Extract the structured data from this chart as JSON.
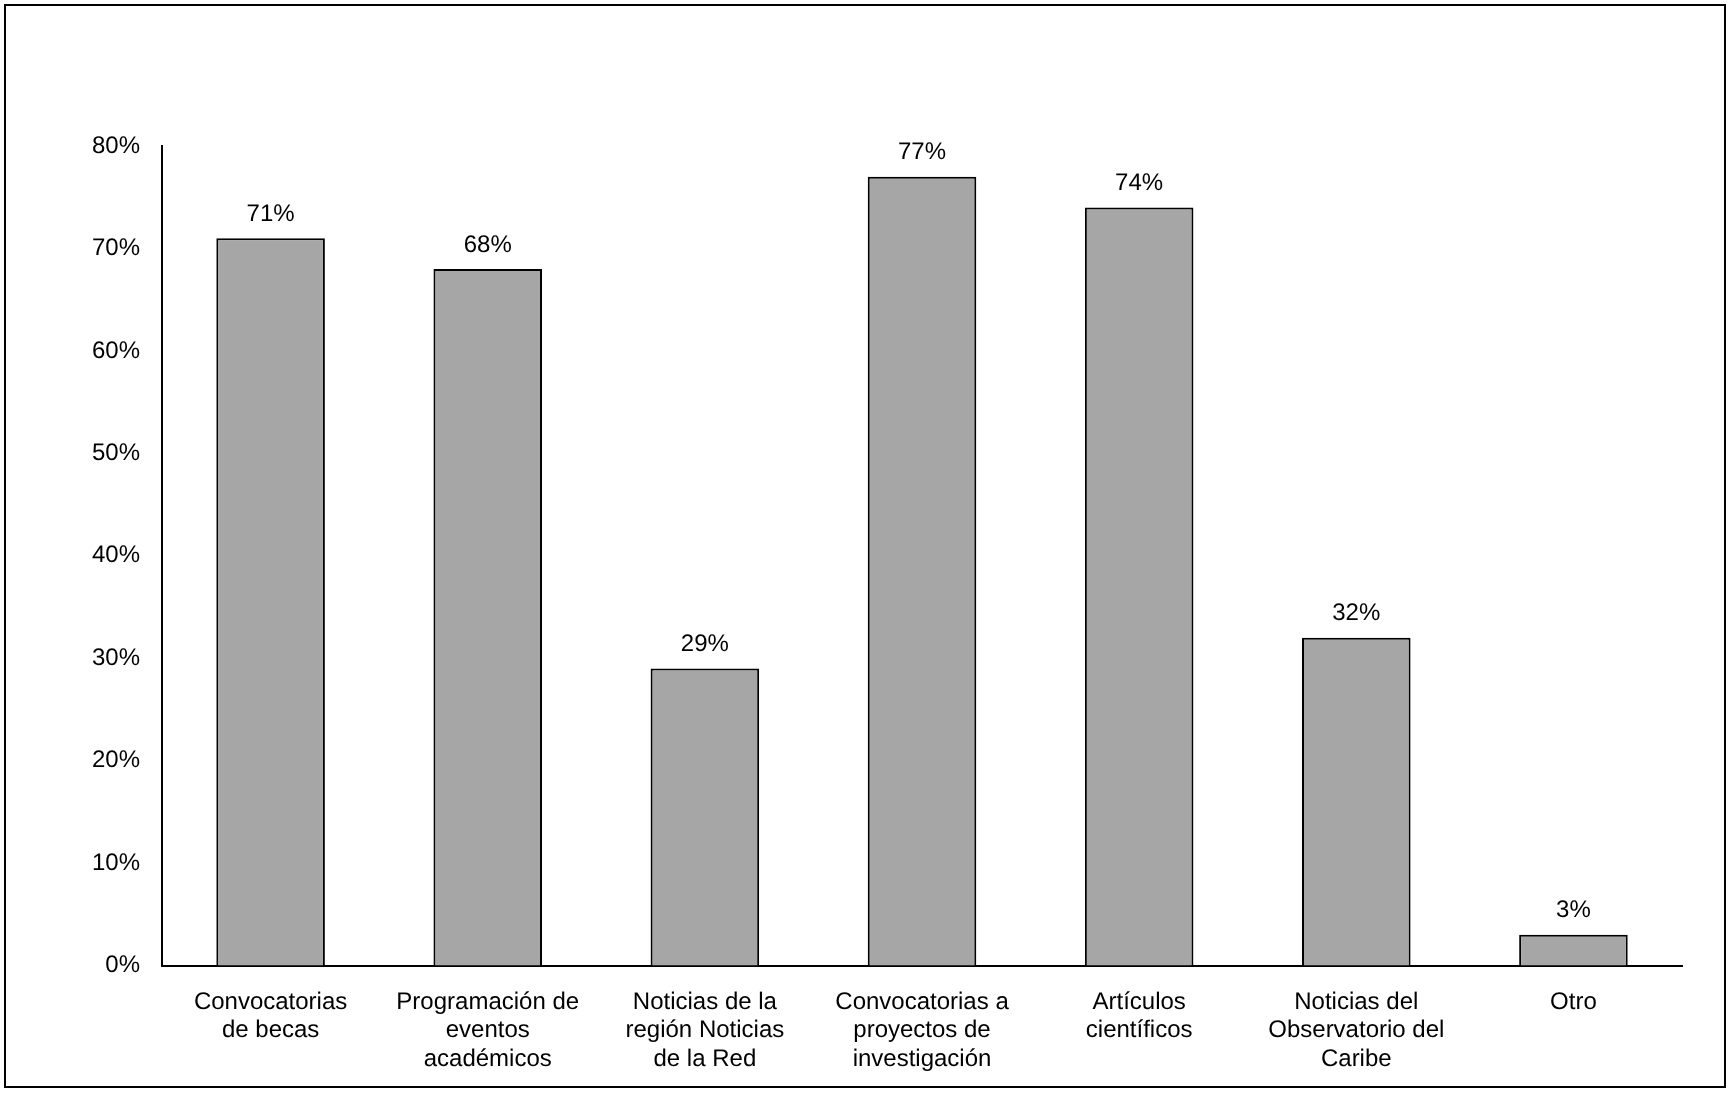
{
  "chart_data": {
    "type": "bar",
    "categories": [
      "Convocatorias de becas",
      "Programación de eventos académicos",
      "Noticias de la región Noticias de la Red",
      "Convocatorias a proyectos de investigación",
      "Artículos científicos",
      "Noticias del Observatorio del Caribe",
      "Otro"
    ],
    "values": [
      71,
      68,
      29,
      77,
      74,
      32,
      3
    ],
    "value_labels": [
      "71%",
      "68%",
      "29%",
      "77%",
      "74%",
      "32%",
      "3%"
    ],
    "color": "#a6a6a6",
    "ylim": [
      0,
      80
    ],
    "yticks": [
      {
        "value": 0,
        "label": "0%"
      },
      {
        "value": 10,
        "label": "10%"
      },
      {
        "value": 20,
        "label": "20%"
      },
      {
        "value": 30,
        "label": "30%"
      },
      {
        "value": 40,
        "label": "40%"
      },
      {
        "value": 50,
        "label": "50%"
      },
      {
        "value": 60,
        "label": "60%"
      },
      {
        "value": 70,
        "label": "70%"
      },
      {
        "value": 80,
        "label": "80%"
      }
    ],
    "grid": false,
    "legend": false
  }
}
